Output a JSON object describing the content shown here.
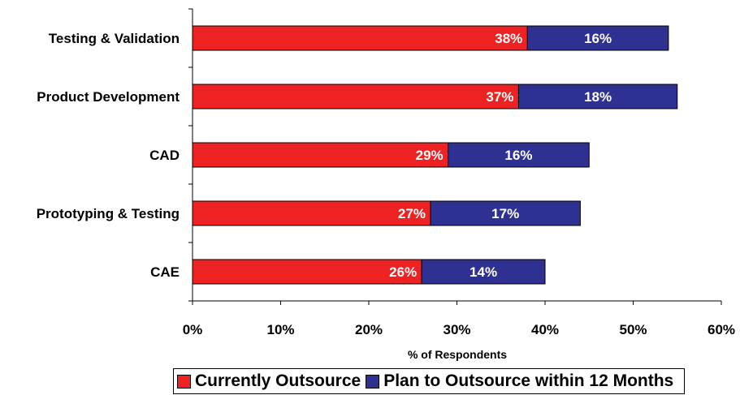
{
  "chart_data": {
    "type": "bar",
    "orientation": "horizontal",
    "stacked": true,
    "categories": [
      "Testing & Validation",
      "Product Development",
      "CAD",
      "Prototyping & Testing",
      "CAE"
    ],
    "series": [
      {
        "name": "Currently Outsource",
        "values": [
          38,
          37,
          29,
          27,
          26
        ],
        "labels": [
          "38%",
          "37%",
          "29%",
          "27%",
          "26%"
        ],
        "color": "#ee2222"
      },
      {
        "name": "Plan to Outsource within 12 Months",
        "values": [
          16,
          18,
          16,
          17,
          14
        ],
        "labels": [
          "16%",
          "18%",
          "16%",
          "17%",
          "14%"
        ],
        "color": "#2e3192"
      }
    ],
    "xlabel": "% of Respondents",
    "xlim": [
      0,
      60
    ],
    "xticks": [
      0,
      10,
      20,
      30,
      40,
      50,
      60
    ],
    "xtick_labels": [
      "0%",
      "10%",
      "20%",
      "30%",
      "40%",
      "50%",
      "60%"
    ],
    "grid": false,
    "legend_position": "bottom"
  },
  "legend": {
    "item1": "Currently Outsource",
    "item2": "Plan to Outsource within 12 Months"
  }
}
